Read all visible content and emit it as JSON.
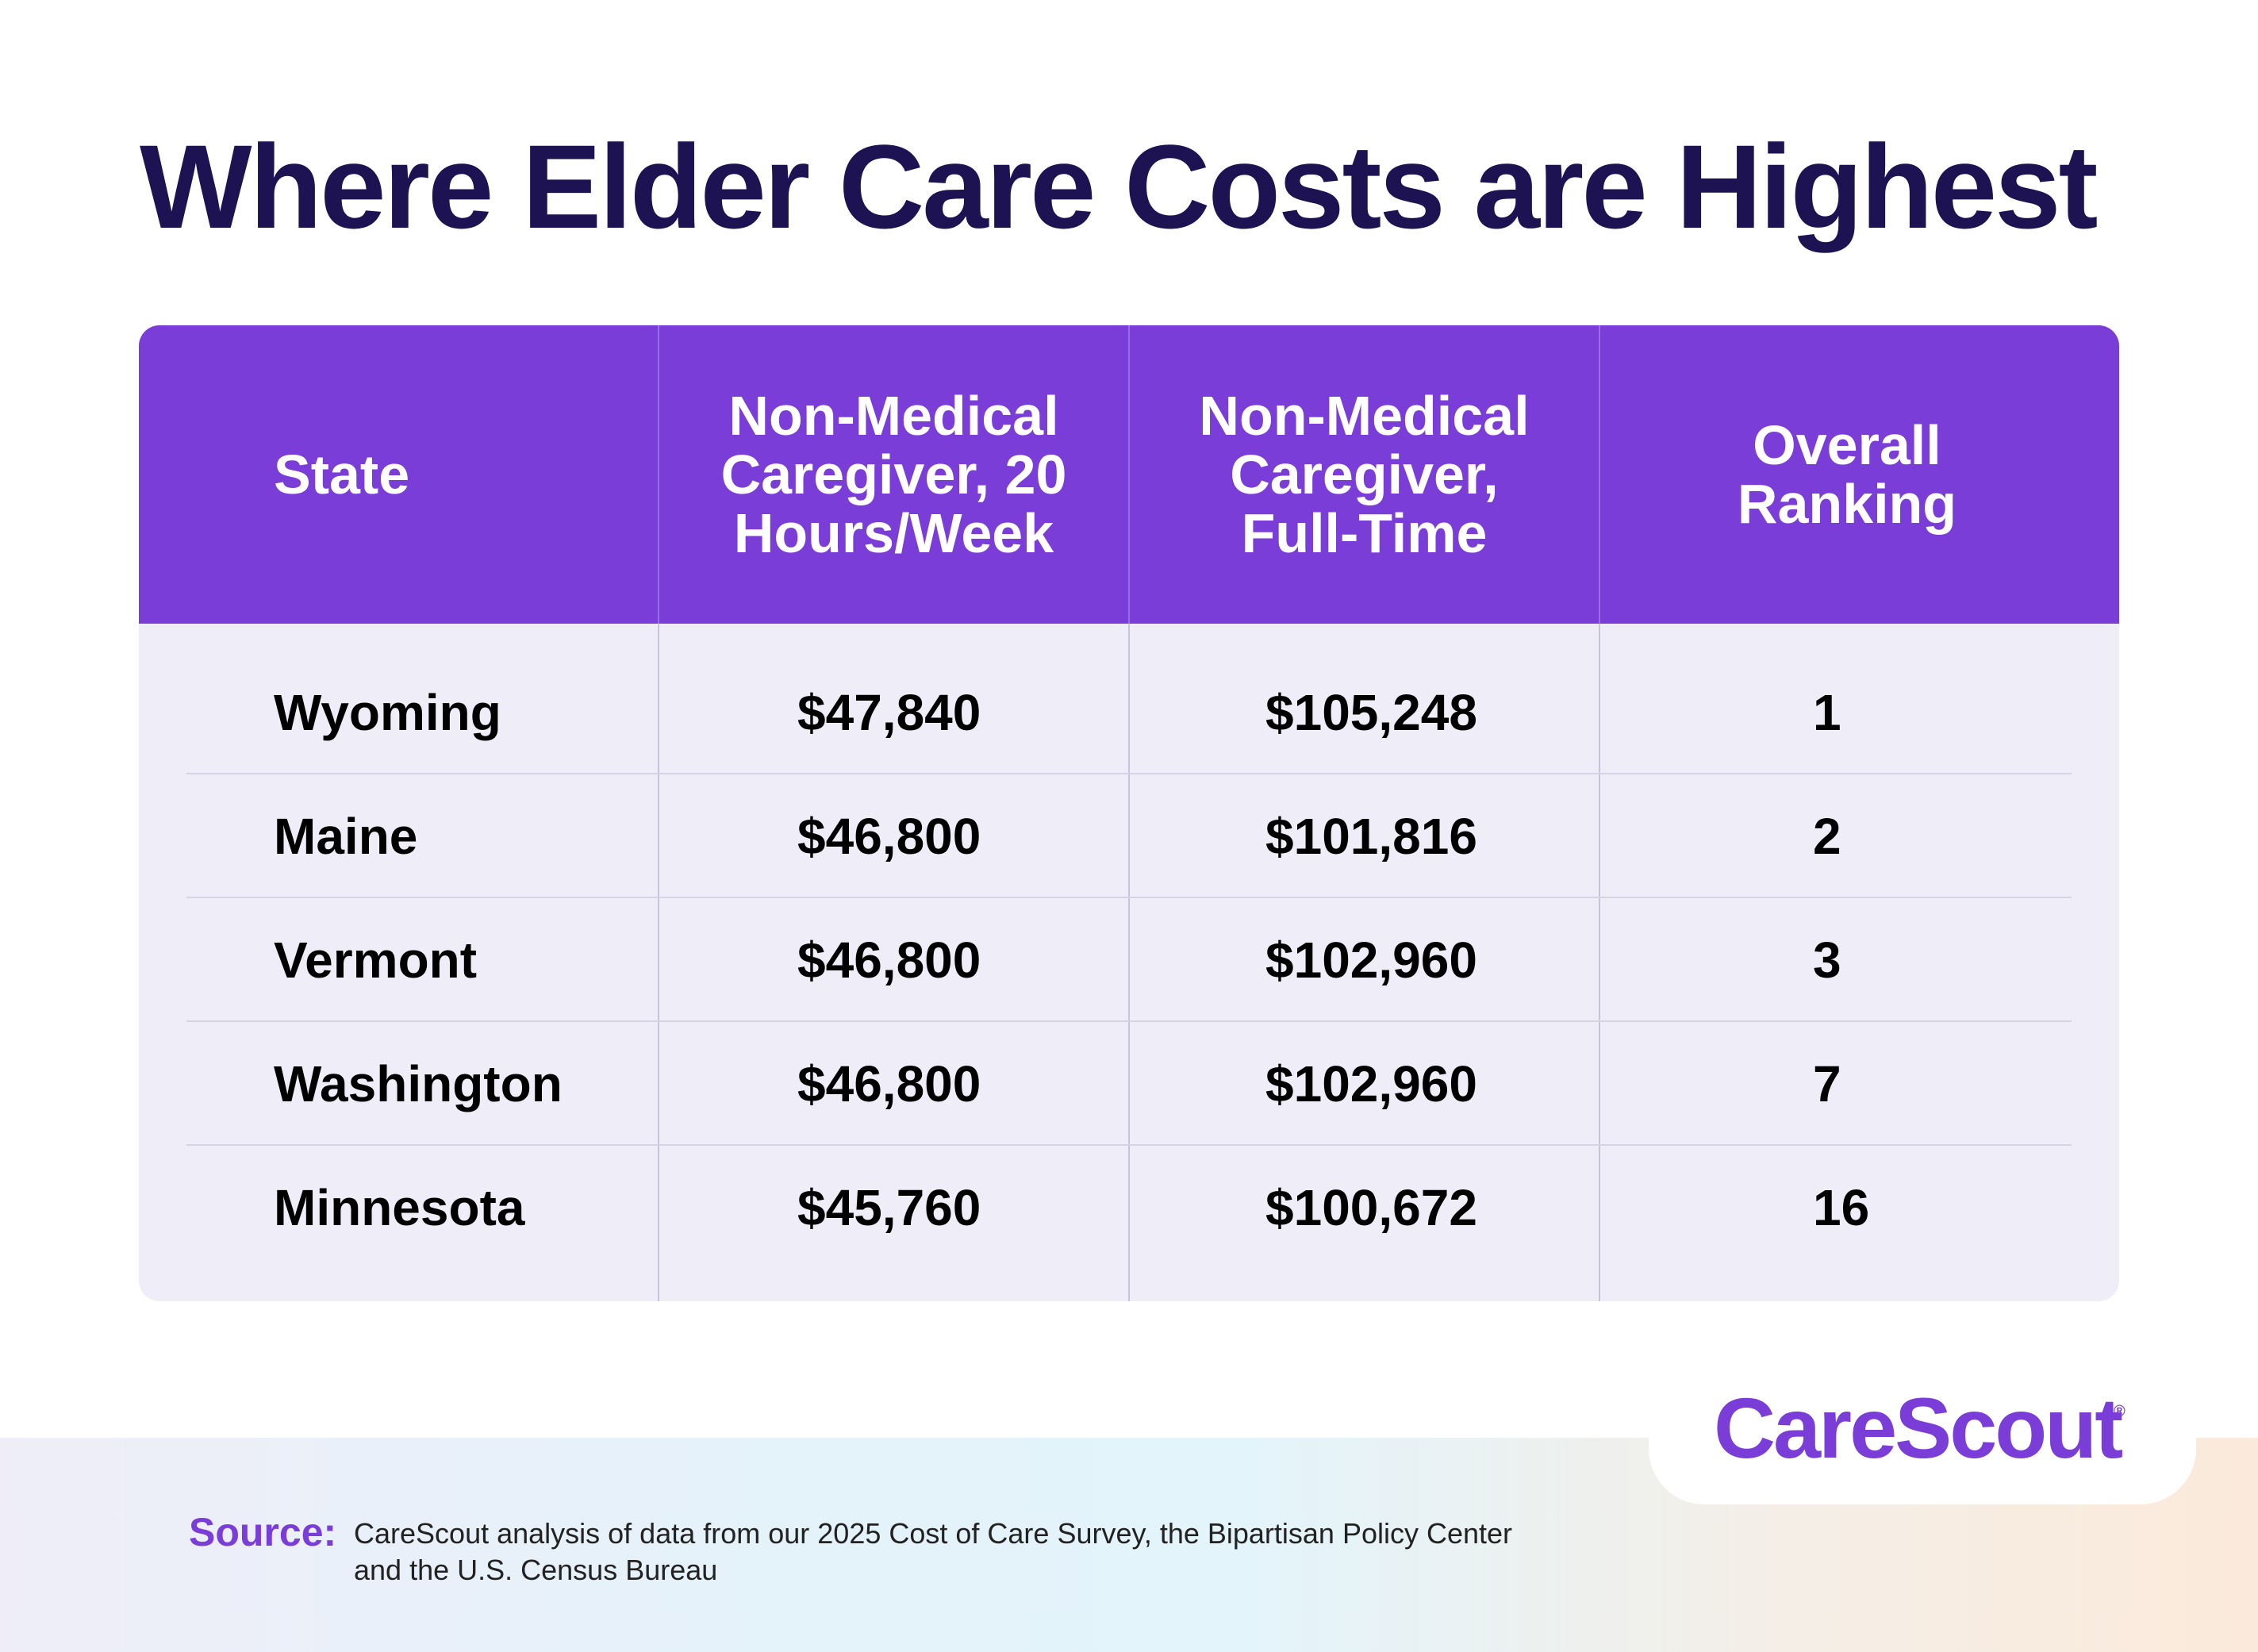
{
  "title": "Where Elder Care Costs are Highest",
  "table": {
    "headers": [
      "State",
      "Non-Medical\nCaregiver, 20\nHours/Week",
      "Non-Medical\nCaregiver,\nFull-Time",
      "Overall\nRanking"
    ],
    "rows": [
      [
        "Wyoming",
        "$47,840",
        "$105,248",
        "1"
      ],
      [
        "Maine",
        "$46,800",
        "$101,816",
        "2"
      ],
      [
        "Vermont",
        "$46,800",
        "$102,960",
        "3"
      ],
      [
        "Washington",
        "$46,800",
        "$102,960",
        "7"
      ],
      [
        "Minnesota",
        "$45,760",
        "$100,672",
        "16"
      ]
    ]
  },
  "brand": {
    "name": "CareScout",
    "registered_mark": "®"
  },
  "source": {
    "label": "Source:",
    "text": "CareScout analysis of data from our 2025 Cost of Care Survey, the Bipartisan Policy Center and the U.S. Census Bureau"
  },
  "colors": {
    "title": "#1e1352",
    "header_bg": "#7a3dd8",
    "table_bg": "#efeef8",
    "brand": "#7a3dd8"
  }
}
